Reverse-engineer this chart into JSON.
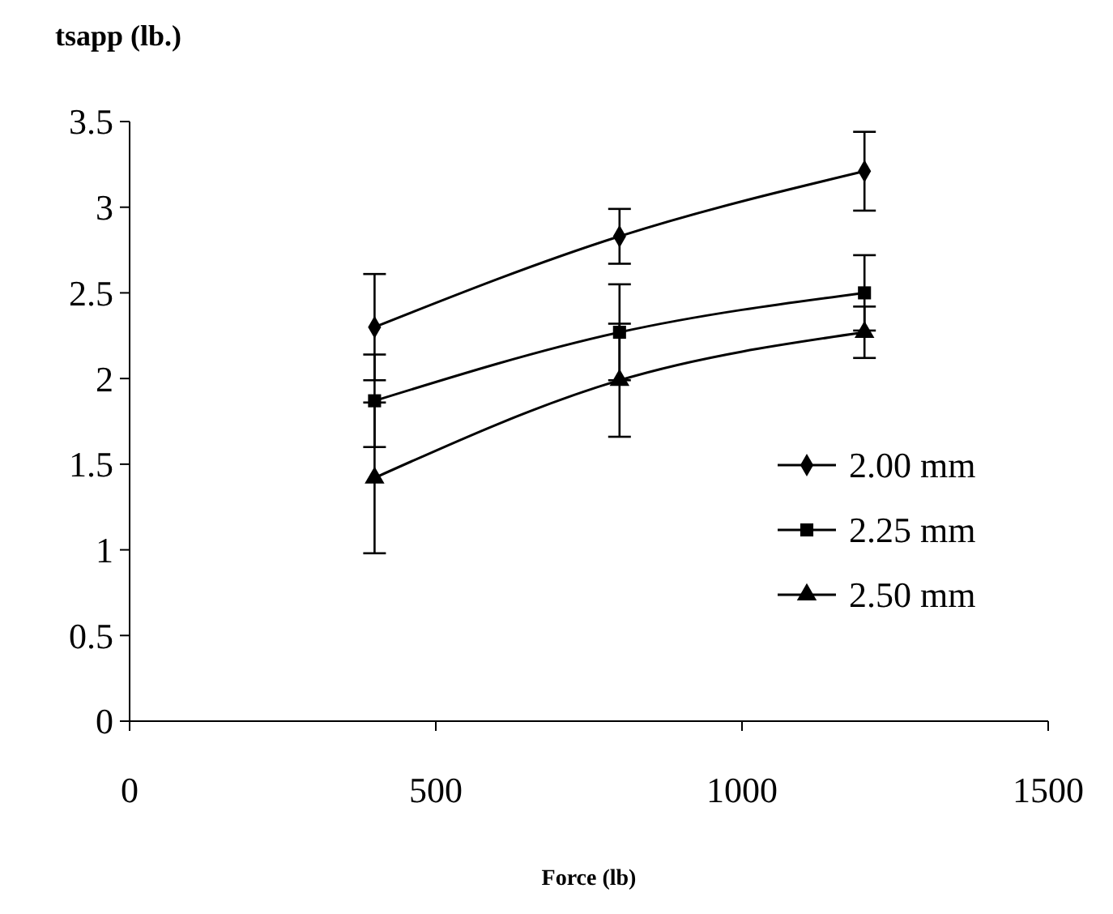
{
  "chart_data": {
    "type": "line",
    "xlabel": "Force (lb)",
    "ylabel": "tsapp (lb.)",
    "x": [
      400,
      800,
      1200
    ],
    "xlim": [
      0,
      1500
    ],
    "xticks": [
      0,
      500,
      1000,
      1500
    ],
    "ylim": [
      0,
      3.5
    ],
    "yticks": [
      0,
      0.5,
      1,
      1.5,
      2,
      2.5,
      3,
      3.5
    ],
    "grid": false,
    "legend": "right",
    "line_style": "solid",
    "series": [
      {
        "name": "2.00 mm",
        "color": "#000000",
        "marker": "diamond",
        "values": [
          2.3,
          2.83,
          3.21
        ],
        "errors": [
          0.31,
          0.16,
          0.23
        ]
      },
      {
        "name": "2.25 mm",
        "color": "#000000",
        "marker": "square",
        "values": [
          1.87,
          2.27,
          2.5
        ],
        "errors": [
          0.27,
          0.28,
          0.22
        ]
      },
      {
        "name": "2.50 mm",
        "color": "#000000",
        "marker": "triangle",
        "values": [
          1.42,
          1.99,
          2.27
        ],
        "errors": [
          0.44,
          0.33,
          0.15
        ]
      }
    ]
  }
}
